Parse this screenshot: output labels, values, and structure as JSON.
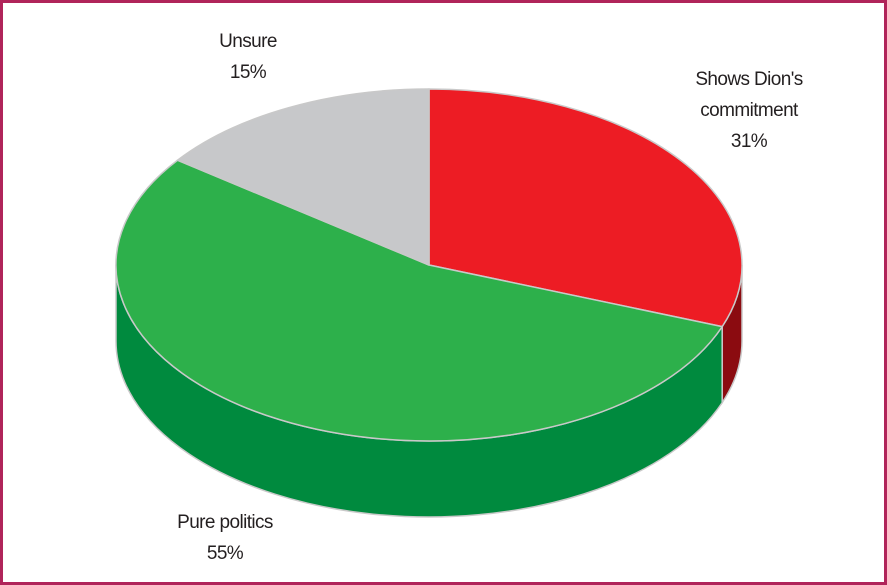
{
  "chart_data": {
    "type": "pie",
    "style": "3d",
    "title": "",
    "slices": [
      {
        "label_lines": [
          "Shows Dion's",
          "commitment"
        ],
        "label": "Shows Dion's commitment",
        "value": 31,
        "value_label": "31%",
        "color": "#ed1c24",
        "side_color": "#8b0b10"
      },
      {
        "label_lines": [
          "Pure politics"
        ],
        "label": "Pure politics",
        "value": 55,
        "value_label": "55%",
        "color": "#2db04b",
        "side_color": "#008a3e"
      },
      {
        "label_lines": [
          "Unsure"
        ],
        "label": "Unsure",
        "value": 15,
        "value_label": "15%",
        "color": "#c7c8ca",
        "side_color": "#9a9b9d"
      }
    ],
    "legend": "none"
  },
  "frame": {
    "border_color": "#b0245a"
  }
}
